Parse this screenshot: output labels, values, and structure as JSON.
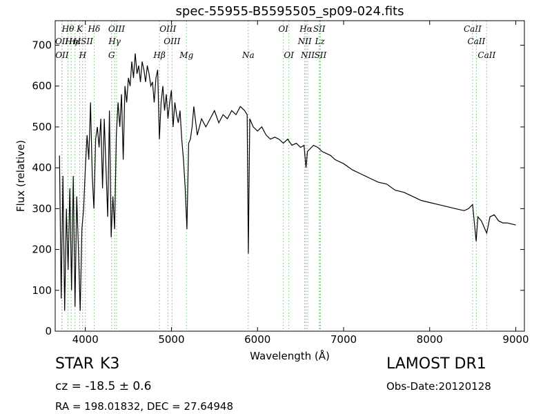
{
  "chart_data": {
    "type": "line",
    "title": "spec-55955-B5595505_sp09-024.fits",
    "xlabel": "Wavelength (Å)",
    "ylabel": "Flux (relative)",
    "color": "#000000",
    "xlim": [
      3650,
      9100
    ],
    "ylim": [
      0,
      760
    ],
    "xticks": [
      4000,
      5000,
      6000,
      7000,
      8000,
      9000
    ],
    "yticks": [
      0,
      100,
      200,
      300,
      400,
      500,
      600,
      700
    ],
    "line_color": "#6abf6a",
    "x": [
      3700,
      3720,
      3740,
      3760,
      3780,
      3800,
      3820,
      3840,
      3860,
      3880,
      3900,
      3920,
      3940,
      3960,
      3980,
      4000,
      4020,
      4040,
      4060,
      4080,
      4100,
      4120,
      4140,
      4160,
      4180,
      4200,
      4220,
      4240,
      4260,
      4280,
      4300,
      4320,
      4340,
      4360,
      4380,
      4400,
      4420,
      4440,
      4460,
      4480,
      4500,
      4520,
      4540,
      4560,
      4580,
      4600,
      4620,
      4640,
      4660,
      4680,
      4700,
      4720,
      4740,
      4760,
      4780,
      4800,
      4820,
      4840,
      4860,
      4880,
      4900,
      4920,
      4940,
      4960,
      4980,
      5000,
      5020,
      5040,
      5060,
      5080,
      5100,
      5120,
      5140,
      5160,
      5180,
      5200,
      5220,
      5240,
      5260,
      5300,
      5350,
      5400,
      5450,
      5500,
      5550,
      5600,
      5650,
      5700,
      5750,
      5800,
      5850,
      5880,
      5893,
      5910,
      5950,
      6000,
      6050,
      6100,
      6150,
      6200,
      6250,
      6300,
      6350,
      6400,
      6450,
      6500,
      6540,
      6563,
      6580,
      6650,
      6700,
      6750,
      6800,
      6850,
      6900,
      7000,
      7100,
      7200,
      7300,
      7400,
      7500,
      7600,
      7700,
      7800,
      7900,
      8000,
      8100,
      8200,
      8300,
      8400,
      8450,
      8498,
      8540,
      8560,
      8600,
      8662,
      8700,
      8750,
      8800,
      8850,
      8900,
      9000
    ],
    "values": [
      430,
      80,
      380,
      50,
      300,
      150,
      350,
      100,
      380,
      60,
      330,
      200,
      50,
      250,
      300,
      400,
      480,
      420,
      560,
      380,
      300,
      470,
      500,
      450,
      520,
      350,
      520,
      400,
      280,
      540,
      230,
      330,
      250,
      480,
      560,
      500,
      580,
      420,
      600,
      560,
      620,
      600,
      660,
      620,
      680,
      630,
      650,
      610,
      660,
      640,
      610,
      650,
      630,
      600,
      610,
      560,
      620,
      640,
      470,
      560,
      600,
      540,
      580,
      520,
      560,
      590,
      500,
      560,
      530,
      510,
      540,
      470,
      420,
      350,
      250,
      460,
      470,
      500,
      550,
      480,
      520,
      500,
      520,
      540,
      510,
      530,
      520,
      540,
      530,
      550,
      540,
      530,
      190,
      520,
      500,
      490,
      500,
      480,
      470,
      475,
      470,
      460,
      470,
      455,
      460,
      450,
      455,
      400,
      440,
      455,
      450,
      440,
      435,
      430,
      420,
      410,
      395,
      385,
      375,
      365,
      360,
      345,
      340,
      330,
      320,
      315,
      310,
      305,
      300,
      295,
      300,
      310,
      220,
      280,
      270,
      240,
      280,
      285,
      270,
      265,
      265,
      260
    ],
    "lines": [
      {
        "label": "Hθ",
        "wavelength": 3798
      },
      {
        "label": "K",
        "wavelength": 3934
      },
      {
        "label": "Hδ",
        "wavelength": 4102
      },
      {
        "label": "OIII",
        "wavelength": 4363
      },
      {
        "label": "OIII",
        "wavelength": 4959
      },
      {
        "label": "OI",
        "wavelength": 6300
      },
      {
        "label": "Hα",
        "wavelength": 6563
      },
      {
        "label": "SII",
        "wavelength": 6717
      },
      {
        "label": "CaII",
        "wavelength": 8498
      },
      {
        "label": "OII",
        "wavelength": 3727
      },
      {
        "label": "Hη",
        "wavelength": 3835
      },
      {
        "label": "Hε",
        "wavelength": 3880
      },
      {
        "label": "ISII",
        "wavelength": 4000
      },
      {
        "label": "Hγ",
        "wavelength": 4340
      },
      {
        "label": "OIII",
        "wavelength": 5007
      },
      {
        "label": "NII",
        "wavelength": 6548
      },
      {
        "label": "Lz",
        "wavelength": 6725
      },
      {
        "label": "CaII",
        "wavelength": 8542
      },
      {
        "label": "OII",
        "wavelength": 3729
      },
      {
        "label": "H",
        "wavelength": 3969
      },
      {
        "label": "G",
        "wavelength": 4305
      },
      {
        "label": "Hβ",
        "wavelength": 4861
      },
      {
        "label": "Mg",
        "wavelength": 5175
      },
      {
        "label": "Na",
        "wavelength": 5893
      },
      {
        "label": "OI",
        "wavelength": 6364
      },
      {
        "label": "NII",
        "wavelength": 6583
      },
      {
        "label": "SII",
        "wavelength": 6731
      },
      {
        "label": "CaII",
        "wavelength": 8662
      }
    ]
  },
  "footer": {
    "object_class": "STAR",
    "subclass": "K3",
    "cz": "cz = -18.5 ± 0.6",
    "coords": "RA = 198.01832, DEC = 27.64948",
    "survey": "LAMOST DR1",
    "obs_date": "Obs-Date:20120128"
  }
}
